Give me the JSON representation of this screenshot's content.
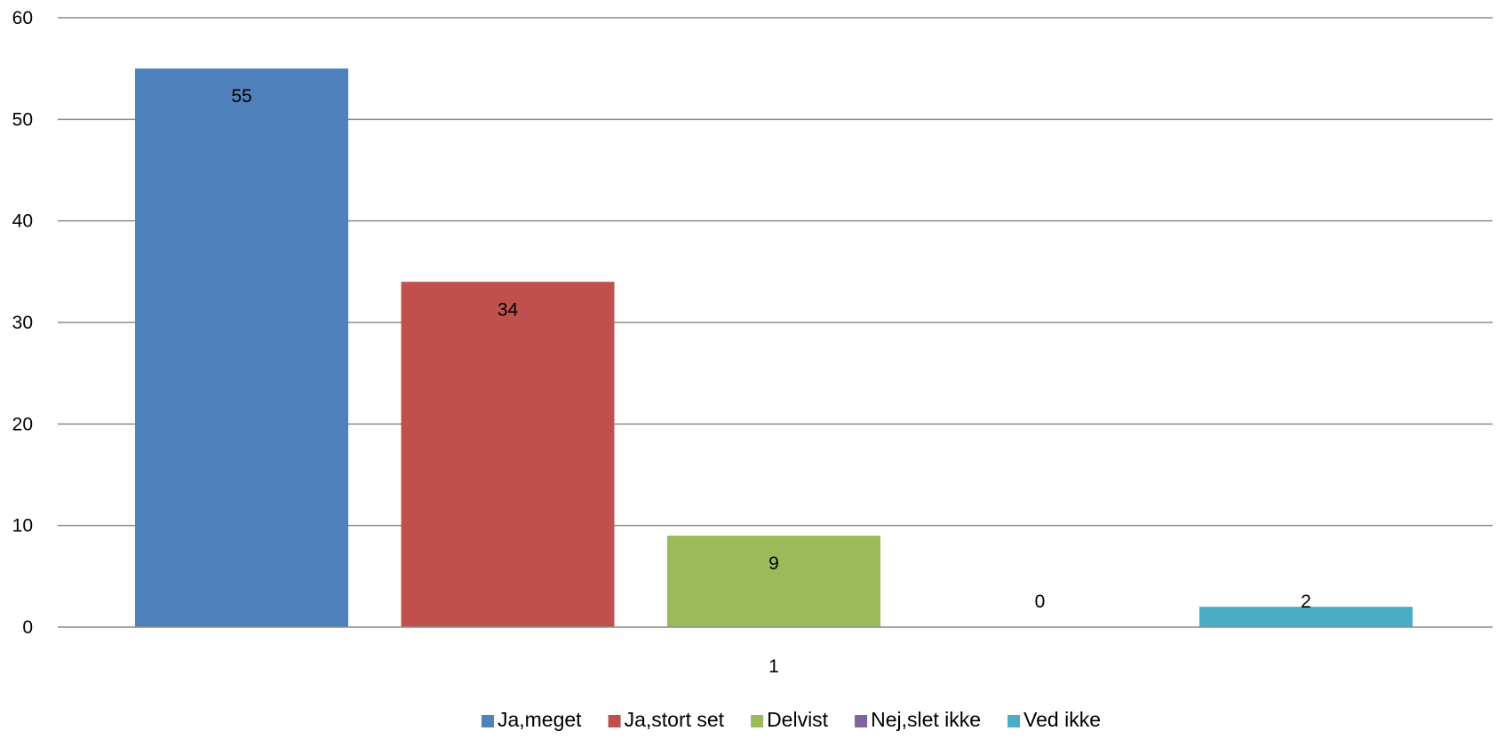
{
  "chart_data": {
    "type": "bar",
    "categories": [
      "1"
    ],
    "series": [
      {
        "name": "Ja,meget",
        "values": [
          55
        ],
        "color": "#4F81BD"
      },
      {
        "name": "Ja,stort set",
        "values": [
          34
        ],
        "color": "#C0504D"
      },
      {
        "name": "Delvist",
        "values": [
          9
        ],
        "color": "#9BBB59"
      },
      {
        "name": "Nej,slet ikke",
        "values": [
          0
        ],
        "color": "#8064A2"
      },
      {
        "name": "Ved ikke",
        "values": [
          2
        ],
        "color": "#4BACC6"
      }
    ],
    "data_labels": [
      "55",
      "34",
      "9",
      "0",
      "2"
    ],
    "y_ticks": [
      "0",
      "10",
      "20",
      "30",
      "40",
      "50",
      "60"
    ],
    "ylim": [
      0,
      60
    ],
    "grid": true,
    "legend_position": "bottom",
    "title": "",
    "xlabel": "",
    "ylabel": ""
  }
}
